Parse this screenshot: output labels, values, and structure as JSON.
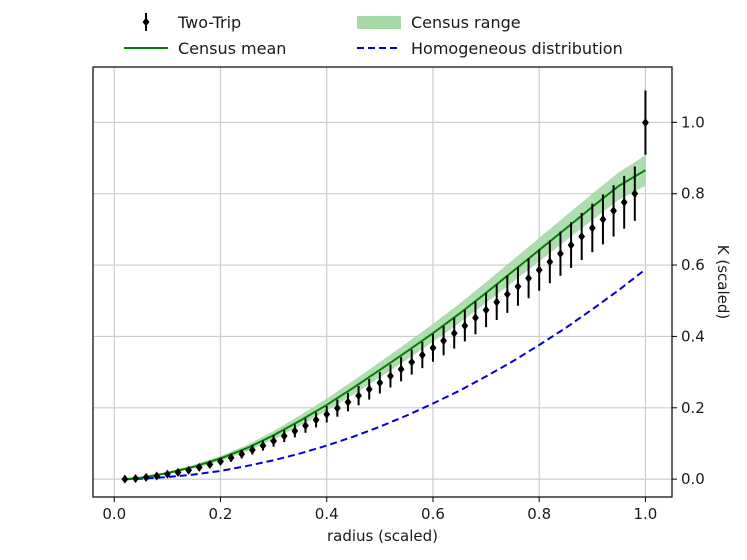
{
  "chart_data": {
    "type": "line",
    "title": "",
    "xlabel": "radius (scaled)",
    "ylabel": "K (scaled)",
    "xlim": [
      -0.04,
      1.05
    ],
    "ylim": [
      -0.05,
      1.155
    ],
    "xticks": [
      0.0,
      0.2,
      0.4,
      0.6,
      0.8,
      1.0
    ],
    "xtick_labels": [
      "0.0",
      "0.2",
      "0.4",
      "0.6",
      "0.8",
      "1.0"
    ],
    "yticks": [
      0.0,
      0.2,
      0.4,
      0.6,
      0.8,
      1.0
    ],
    "ytick_labels": [
      "0.0",
      "0.2",
      "0.4",
      "0.6",
      "0.8",
      "1.0"
    ],
    "grid": true,
    "legend_position": "top, above plot, two columns",
    "colors": {
      "two_trip": "#000000",
      "census_mean": "#008000",
      "census_range": "#a6d9a6",
      "homogeneous": "#0000dd",
      "grid": "#cccccc"
    },
    "series": [
      {
        "name": "Two-Trip",
        "kind": "errorbar",
        "x": [
          0.02,
          0.04,
          0.06,
          0.08,
          0.1,
          0.12,
          0.14,
          0.16,
          0.18,
          0.2,
          0.22,
          0.24,
          0.26,
          0.28,
          0.3,
          0.32,
          0.34,
          0.36,
          0.38,
          0.4,
          0.42,
          0.44,
          0.46,
          0.48,
          0.5,
          0.52,
          0.54,
          0.56,
          0.58,
          0.6,
          0.62,
          0.64,
          0.66,
          0.68,
          0.7,
          0.72,
          0.74,
          0.76,
          0.78,
          0.8,
          0.82,
          0.84,
          0.86,
          0.88,
          0.9,
          0.92,
          0.94,
          0.96,
          0.98,
          1.0
        ],
        "y": [
          0.0,
          0.002,
          0.005,
          0.009,
          0.014,
          0.019,
          0.025,
          0.033,
          0.041,
          0.05,
          0.06,
          0.07,
          0.082,
          0.094,
          0.107,
          0.121,
          0.135,
          0.15,
          0.166,
          0.182,
          0.199,
          0.216,
          0.234,
          0.252,
          0.27,
          0.289,
          0.308,
          0.328,
          0.348,
          0.368,
          0.388,
          0.409,
          0.43,
          0.452,
          0.474,
          0.496,
          0.518,
          0.54,
          0.563,
          0.586,
          0.609,
          0.632,
          0.656,
          0.68,
          0.704,
          0.728,
          0.752,
          0.776,
          0.8,
          0.999
        ],
        "yerr": [
          0.0,
          0.001,
          0.002,
          0.003,
          0.004,
          0.005,
          0.006,
          0.007,
          0.008,
          0.01,
          0.011,
          0.012,
          0.013,
          0.014,
          0.016,
          0.017,
          0.018,
          0.02,
          0.021,
          0.023,
          0.024,
          0.026,
          0.027,
          0.029,
          0.03,
          0.032,
          0.034,
          0.035,
          0.037,
          0.039,
          0.041,
          0.043,
          0.044,
          0.046,
          0.048,
          0.05,
          0.052,
          0.054,
          0.056,
          0.058,
          0.06,
          0.062,
          0.064,
          0.066,
          0.068,
          0.07,
          0.072,
          0.074,
          0.076,
          0.09
        ]
      },
      {
        "name": "Census mean",
        "kind": "line",
        "x": [
          0.02,
          0.05,
          0.1,
          0.15,
          0.2,
          0.25,
          0.3,
          0.35,
          0.4,
          0.45,
          0.5,
          0.55,
          0.6,
          0.65,
          0.7,
          0.75,
          0.8,
          0.85,
          0.9,
          0.95,
          1.0
        ],
        "y": [
          0.0,
          0.004,
          0.017,
          0.035,
          0.058,
          0.087,
          0.123,
          0.164,
          0.208,
          0.256,
          0.306,
          0.357,
          0.409,
          0.464,
          0.522,
          0.582,
          0.642,
          0.702,
          0.763,
          0.822,
          0.866
        ]
      },
      {
        "name": "Census range",
        "kind": "band",
        "x": [
          0.02,
          0.05,
          0.1,
          0.15,
          0.2,
          0.25,
          0.3,
          0.35,
          0.4,
          0.45,
          0.5,
          0.55,
          0.6,
          0.65,
          0.7,
          0.75,
          0.8,
          0.85,
          0.9,
          0.95,
          1.0
        ],
        "low": [
          0.0,
          0.003,
          0.014,
          0.03,
          0.051,
          0.078,
          0.111,
          0.15,
          0.192,
          0.237,
          0.285,
          0.334,
          0.385,
          0.438,
          0.494,
          0.552,
          0.61,
          0.668,
          0.726,
          0.783,
          0.822
        ],
        "high": [
          0.0,
          0.005,
          0.02,
          0.04,
          0.065,
          0.096,
          0.135,
          0.179,
          0.226,
          0.276,
          0.328,
          0.381,
          0.435,
          0.492,
          0.552,
          0.614,
          0.676,
          0.738,
          0.8,
          0.86,
          0.908
        ]
      },
      {
        "name": "Homogeneous distribution",
        "kind": "dashed-line",
        "x": [
          0.02,
          0.05,
          0.1,
          0.15,
          0.2,
          0.25,
          0.3,
          0.35,
          0.4,
          0.45,
          0.5,
          0.55,
          0.6,
          0.65,
          0.7,
          0.75,
          0.8,
          0.85,
          0.9,
          0.95,
          1.0
        ],
        "y": [
          0.0,
          0.001,
          0.006,
          0.013,
          0.023,
          0.037,
          0.053,
          0.072,
          0.094,
          0.119,
          0.147,
          0.178,
          0.212,
          0.248,
          0.288,
          0.33,
          0.376,
          0.424,
          0.476,
          0.53,
          0.588
        ]
      }
    ],
    "legend": [
      {
        "label": "Two-Trip",
        "symbol": "errorbar"
      },
      {
        "label": "Census range",
        "symbol": "band"
      },
      {
        "label": "Census mean",
        "symbol": "line"
      },
      {
        "label": "Homogeneous distribution",
        "symbol": "dashed-line"
      }
    ]
  }
}
